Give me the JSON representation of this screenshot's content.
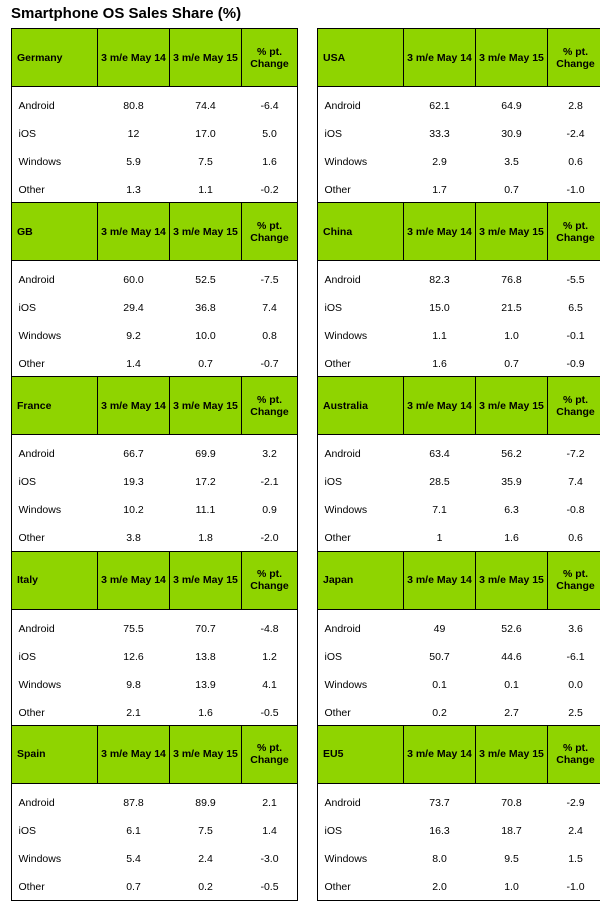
{
  "title": "Smartphone OS Sales Share (%)",
  "columns": [
    "3 m/e May 14",
    "3 m/e May 15",
    "% pt. Change"
  ],
  "chart_data": {
    "type": "table",
    "title": "Smartphone OS Sales Share (%)",
    "columns": [
      "3 m/e May 14",
      "3 m/e May 15",
      "% pt. Change"
    ],
    "tables": [
      {
        "region": "Germany",
        "rows": [
          {
            "os": "Android",
            "values": [
              "80.8",
              "74.4",
              "-6.4"
            ]
          },
          {
            "os": "iOS",
            "values": [
              "12",
              "17.0",
              "5.0"
            ]
          },
          {
            "os": "Windows",
            "values": [
              "5.9",
              "7.5",
              "1.6"
            ]
          },
          {
            "os": "Other",
            "values": [
              "1.3",
              "1.1",
              "-0.2"
            ]
          }
        ]
      },
      {
        "region": "USA",
        "rows": [
          {
            "os": "Android",
            "values": [
              "62.1",
              "64.9",
              "2.8"
            ]
          },
          {
            "os": "iOS",
            "values": [
              "33.3",
              "30.9",
              "-2.4"
            ]
          },
          {
            "os": "Windows",
            "values": [
              "2.9",
              "3.5",
              "0.6"
            ]
          },
          {
            "os": "Other",
            "values": [
              "1.7",
              "0.7",
              "-1.0"
            ]
          }
        ]
      },
      {
        "region": "GB",
        "rows": [
          {
            "os": "Android",
            "values": [
              "60.0",
              "52.5",
              "-7.5"
            ]
          },
          {
            "os": "iOS",
            "values": [
              "29.4",
              "36.8",
              "7.4"
            ]
          },
          {
            "os": "Windows",
            "values": [
              "9.2",
              "10.0",
              "0.8"
            ]
          },
          {
            "os": "Other",
            "values": [
              "1.4",
              "0.7",
              "-0.7"
            ]
          }
        ]
      },
      {
        "region": "China",
        "rows": [
          {
            "os": "Android",
            "values": [
              "82.3",
              "76.8",
              "-5.5"
            ]
          },
          {
            "os": "iOS",
            "values": [
              "15.0",
              "21.5",
              "6.5"
            ]
          },
          {
            "os": "Windows",
            "values": [
              "1.1",
              "1.0",
              "-0.1"
            ]
          },
          {
            "os": "Other",
            "values": [
              "1.6",
              "0.7",
              "-0.9"
            ]
          }
        ]
      },
      {
        "region": "France",
        "rows": [
          {
            "os": "Android",
            "values": [
              "66.7",
              "69.9",
              "3.2"
            ]
          },
          {
            "os": "iOS",
            "values": [
              "19.3",
              "17.2",
              "-2.1"
            ]
          },
          {
            "os": "Windows",
            "values": [
              "10.2",
              "11.1",
              "0.9"
            ]
          },
          {
            "os": "Other",
            "values": [
              "3.8",
              "1.8",
              "-2.0"
            ]
          }
        ]
      },
      {
        "region": "Australia",
        "rows": [
          {
            "os": "Android",
            "values": [
              "63.4",
              "56.2",
              "-7.2"
            ]
          },
          {
            "os": "iOS",
            "values": [
              "28.5",
              "35.9",
              "7.4"
            ]
          },
          {
            "os": "Windows",
            "values": [
              "7.1",
              "6.3",
              "-0.8"
            ]
          },
          {
            "os": "Other",
            "values": [
              "1",
              "1.6",
              "0.6"
            ]
          }
        ]
      },
      {
        "region": "Italy",
        "rows": [
          {
            "os": "Android",
            "values": [
              "75.5",
              "70.7",
              "-4.8"
            ]
          },
          {
            "os": "iOS",
            "values": [
              "12.6",
              "13.8",
              "1.2"
            ]
          },
          {
            "os": "Windows",
            "values": [
              "9.8",
              "13.9",
              "4.1"
            ]
          },
          {
            "os": "Other",
            "values": [
              "2.1",
              "1.6",
              "-0.5"
            ]
          }
        ]
      },
      {
        "region": "Japan",
        "rows": [
          {
            "os": "Android",
            "values": [
              "49",
              "52.6",
              "3.6"
            ]
          },
          {
            "os": "iOS",
            "values": [
              "50.7",
              "44.6",
              "-6.1"
            ]
          },
          {
            "os": "Windows",
            "values": [
              "0.1",
              "0.1",
              "0.0"
            ]
          },
          {
            "os": "Other",
            "values": [
              "0.2",
              "2.7",
              "2.5"
            ]
          }
        ]
      },
      {
        "region": "Spain",
        "rows": [
          {
            "os": "Android",
            "values": [
              "87.8",
              "89.9",
              "2.1"
            ]
          },
          {
            "os": "iOS",
            "values": [
              "6.1",
              "7.5",
              "1.4"
            ]
          },
          {
            "os": "Windows",
            "values": [
              "5.4",
              "2.4",
              "-3.0"
            ]
          },
          {
            "os": "Other",
            "values": [
              "0.7",
              "0.2",
              "-0.5"
            ]
          }
        ]
      },
      {
        "region": "EU5",
        "rows": [
          {
            "os": "Android",
            "values": [
              "73.7",
              "70.8",
              "-2.9"
            ]
          },
          {
            "os": "iOS",
            "values": [
              "16.3",
              "18.7",
              "2.4"
            ]
          },
          {
            "os": "Windows",
            "values": [
              "8.0",
              "9.5",
              "1.5"
            ]
          },
          {
            "os": "Other",
            "values": [
              "2.0",
              "1.0",
              "-1.0"
            ]
          }
        ]
      }
    ]
  },
  "colors": {
    "header_green": "#8fd400",
    "border": "#000000"
  }
}
